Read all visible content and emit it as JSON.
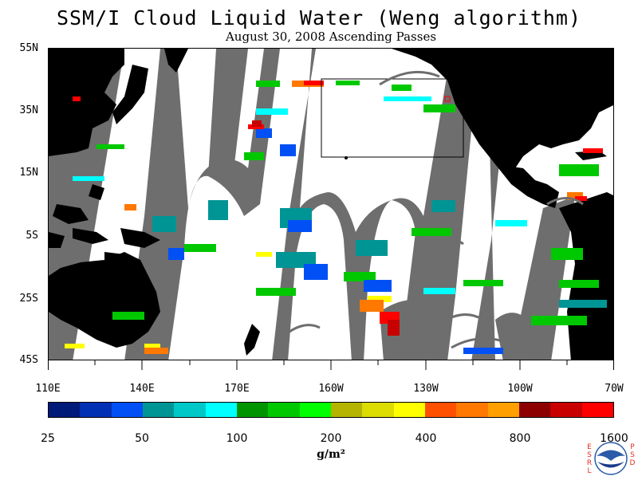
{
  "title": "SSM/I Cloud Liquid Water (Weng algorithm)",
  "subtitle": "August 30, 2008  Ascending Passes",
  "y_axis_labels": [
    "55N",
    "35N",
    "15N",
    "5S",
    "25S",
    "45S"
  ],
  "x_axis_labels": [
    "110E",
    "140E",
    "170E",
    "160W",
    "130W",
    "100W",
    "70W"
  ],
  "colorbar": {
    "colors": [
      "#001a7a",
      "#0030b4",
      "#0050f5",
      "#009595",
      "#00c8c8",
      "#00ffff",
      "#009500",
      "#00c800",
      "#00ff00",
      "#b4b400",
      "#dcdc00",
      "#ffff00",
      "#ff5000",
      "#ff7800",
      "#ffa000",
      "#8c0000",
      "#c80000",
      "#ff0000"
    ],
    "tick_labels": [
      "25",
      "50",
      "100",
      "200",
      "400",
      "800",
      "1600"
    ]
  },
  "units_label": "g/m²",
  "logo": {
    "name": "NOAA",
    "left_letters": [
      "E",
      "S",
      "R",
      "L"
    ],
    "right_letters": [
      "P",
      "S",
      "D"
    ]
  },
  "colors": {
    "land": "#000000",
    "no_data_swath_gap": "#6e6e6e",
    "clear_ocean": "#ffffff"
  }
}
